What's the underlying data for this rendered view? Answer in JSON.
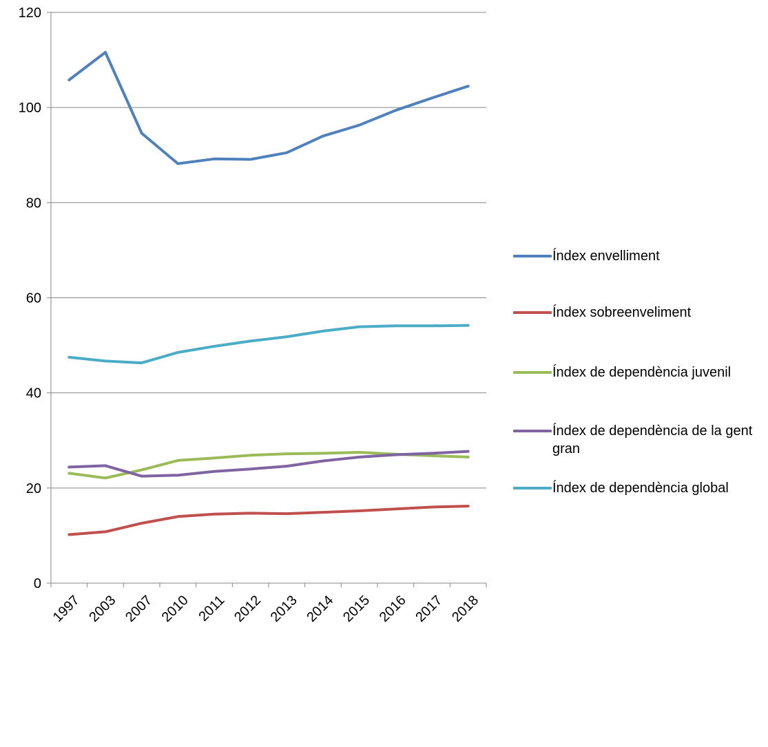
{
  "chart_data": {
    "type": "line",
    "categories": [
      "1997",
      "2003",
      "2007",
      "2010",
      "2011",
      "2012",
      "2013",
      "2014",
      "2015",
      "2016",
      "2017",
      "2018"
    ],
    "ylim": [
      0,
      120
    ],
    "yticks": [
      0,
      20,
      40,
      60,
      80,
      100,
      120
    ],
    "grid": true,
    "legend_position": "right",
    "series": [
      {
        "name": "Índex envelliment",
        "color": "#4F81BD",
        "values": [
          105.8,
          111.6,
          94.6,
          88.2,
          89.2,
          89.1,
          90.5,
          94.0,
          96.3,
          99.4,
          102.0,
          104.5
        ]
      },
      {
        "name": "Índex sobreenveliment",
        "color": "#C0504D",
        "values": [
          10.2,
          10.8,
          12.6,
          14.0,
          14.5,
          14.7,
          14.6,
          14.9,
          15.2,
          15.6,
          16.0,
          16.2
        ]
      },
      {
        "name": "Índex de dependència juvenil",
        "color": "#9BBB59",
        "values": [
          23.1,
          22.1,
          23.8,
          25.8,
          26.3,
          26.9,
          27.2,
          27.3,
          27.5,
          27.1,
          26.8,
          26.5
        ]
      },
      {
        "name": "Índex de dependència de la gent gran",
        "color": "#8064A2",
        "values": [
          24.4,
          24.7,
          22.5,
          22.7,
          23.5,
          24.0,
          24.6,
          25.7,
          26.5,
          27.0,
          27.3,
          27.7
        ]
      },
      {
        "name": "Índex de dependència global",
        "color": "#4BACC6",
        "values": [
          47.5,
          46.7,
          46.3,
          48.5,
          49.8,
          50.9,
          51.8,
          53.0,
          53.9,
          54.1,
          54.1,
          54.2
        ]
      }
    ]
  }
}
